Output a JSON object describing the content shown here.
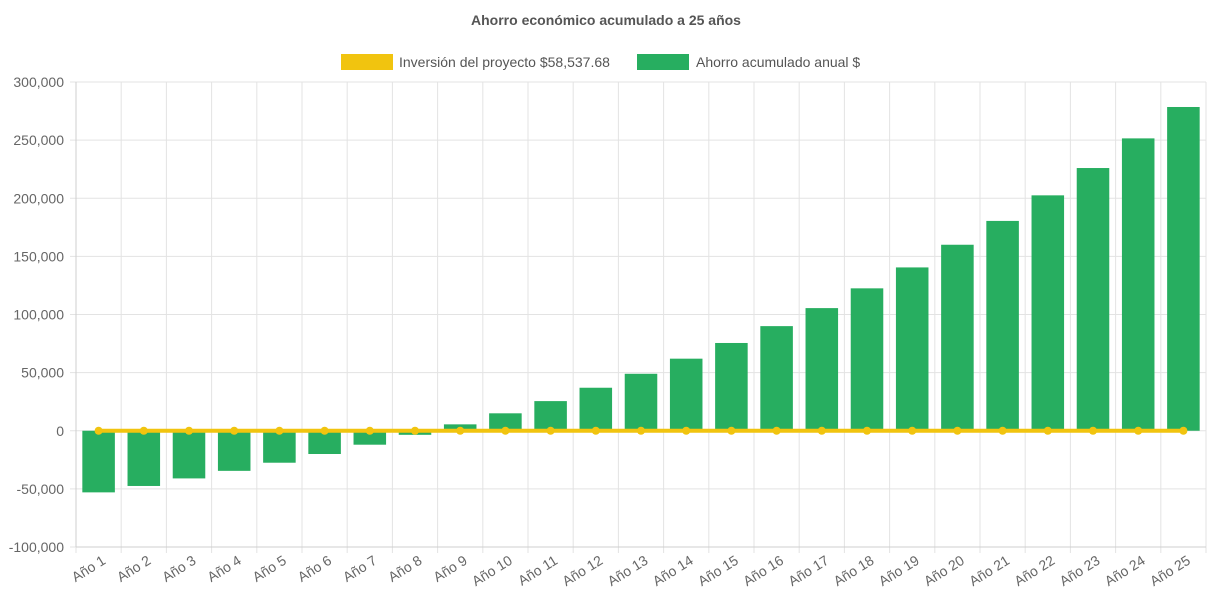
{
  "chart_data": {
    "type": "bar",
    "title": "Ahorro económico acumulado a 25 años",
    "categories": [
      "Año 1",
      "Año 2",
      "Año 3",
      "Año 4",
      "Año 5",
      "Año 6",
      "Año 7",
      "Año 8",
      "Año 9",
      "Año 10",
      "Año 11",
      "Año 12",
      "Año 13",
      "Año 14",
      "Año 15",
      "Año 16",
      "Año 17",
      "Año 18",
      "Año 19",
      "Año 20",
      "Año 21",
      "Año 22",
      "Año 23",
      "Año 24",
      "Año 25"
    ],
    "series": [
      {
        "name": "Inversión del proyecto $58,537.68",
        "type": "line",
        "color": "#f1c40f",
        "values": [
          0,
          0,
          0,
          0,
          0,
          0,
          0,
          0,
          0,
          0,
          0,
          0,
          0,
          0,
          0,
          0,
          0,
          0,
          0,
          0,
          0,
          0,
          0,
          0,
          0
        ]
      },
      {
        "name": "Ahorro acumulado anual $",
        "type": "bar",
        "color": "#27ae60",
        "values": [
          -53000,
          -47500,
          -41000,
          -34500,
          -27500,
          -20000,
          -12000,
          -3500,
          5500,
          15000,
          25500,
          37000,
          49000,
          62000,
          75500,
          90000,
          105500,
          122500,
          140500,
          160000,
          180500,
          202500,
          226000,
          251500,
          278500
        ]
      }
    ],
    "y_ticks": [
      "300,000",
      "250,000",
      "200,000",
      "150,000",
      "100,000",
      "50,000",
      "0",
      "-50,000",
      "-100,000"
    ],
    "ylim": [
      -100000,
      300000
    ],
    "xlabel": "",
    "ylabel": "",
    "grid": true,
    "legend_position": "top-center"
  }
}
